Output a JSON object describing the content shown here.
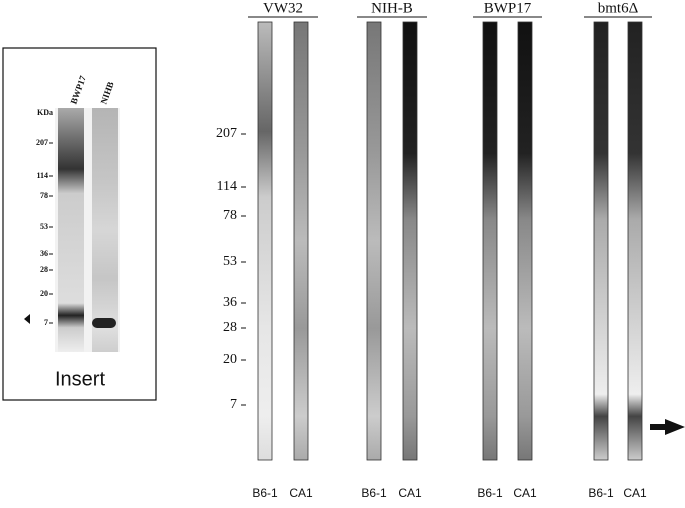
{
  "insert": {
    "unit_label": "KDa",
    "lanes": [
      "BWP17",
      "NIHB"
    ],
    "markers": [
      "207",
      "114",
      "78",
      "53",
      "36",
      "28",
      "20",
      "7"
    ],
    "caption": "Insert"
  },
  "main": {
    "markers": [
      "207",
      "114",
      "78",
      "53",
      "36",
      "28",
      "20",
      "7"
    ],
    "groups": [
      {
        "name": "VW32",
        "lanes": [
          "B6-1",
          "CA1"
        ]
      },
      {
        "name": "NIH-B",
        "lanes": [
          "B6-1",
          "CA1"
        ]
      },
      {
        "name": "BWP17",
        "lanes": [
          "B6-1",
          "CA1"
        ]
      },
      {
        "name": "bmt6Δ",
        "lanes": [
          "B6-1",
          "CA1"
        ]
      }
    ]
  }
}
